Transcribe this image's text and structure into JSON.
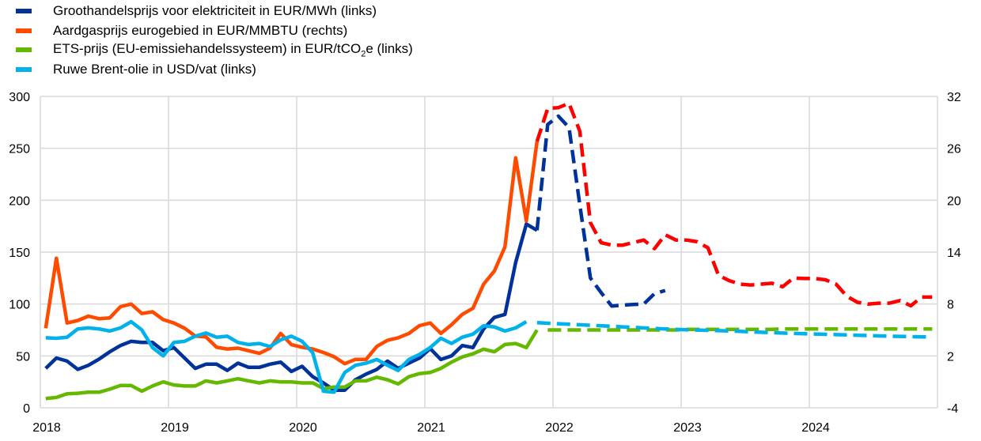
{
  "chart_data": {
    "type": "line",
    "title": "",
    "xlabel": "",
    "ylabel_left": "",
    "ylabel_right": "",
    "x_ticks": [
      "2018",
      "2019",
      "2020",
      "2021",
      "2022",
      "2023",
      "2024"
    ],
    "x_range": [
      "2018-01",
      "2024-12"
    ],
    "ylim_left": [
      0,
      300
    ],
    "yticks_left": [
      0,
      50,
      100,
      150,
      200,
      250,
      300
    ],
    "ylim_right": [
      -4,
      32
    ],
    "yticks_right": [
      -4,
      2,
      8,
      14,
      20,
      26,
      32
    ],
    "grid": true,
    "legend_placement": "top-left",
    "legend": [
      {
        "label_main": "Groothandelsprijs voor elektriciteit in EUR/MWh (links)",
        "color": "#003299"
      },
      {
        "label_main": "Aardgasprijs eurogebied in EUR/MMBTU (rechts)",
        "color": "#FF4B00"
      },
      {
        "label_pre": "ETS-prijs (EU-emissiehandelssysteem) in EUR/tCO",
        "label_sub": "2",
        "label_post": "e (links)",
        "color": "#65B800"
      },
      {
        "label_main": "Ruwe Brent-olie in USD/vat (links)",
        "color": "#00B1EA"
      }
    ],
    "series": [
      {
        "name": "Groothandelsprijs voor elektriciteit in EUR/MWh (links)",
        "axis": "left",
        "color": "#003299",
        "style": "solid",
        "start": "2018-01",
        "values": [
          38,
          48,
          45,
          37,
          41,
          47,
          54,
          60,
          64,
          63,
          63,
          55,
          58,
          48,
          38,
          42,
          42,
          36,
          43,
          39,
          39,
          42,
          44,
          35,
          40,
          30,
          24,
          17,
          17,
          27,
          32.5,
          37,
          45,
          38,
          43,
          48,
          57,
          46.5,
          50,
          60,
          58,
          76,
          87,
          90,
          140,
          177,
          171
        ]
      },
      {
        "name": "Groothandelsprijs voor elektriciteit in EUR/MWh (links)",
        "axis": "left",
        "color": "#003299",
        "style": "dashed",
        "start": "2021-11",
        "values": [
          171,
          273,
          281,
          270,
          196,
          125,
          111,
          98,
          99,
          99.5,
          100,
          110,
          113
        ]
      },
      {
        "name": "Aardgasprijs eurogebied in EUR/MMBTU (rechts)",
        "axis": "right",
        "color": "#FF4B00",
        "style": "solid",
        "start": "2018-01",
        "values": [
          5.2,
          13.3,
          5.8,
          6.1,
          6.6,
          6.3,
          6.4,
          7.7,
          8.0,
          6.9,
          7.1,
          6.2,
          5.8,
          5.2,
          4.3,
          4.2,
          3.0,
          2.8,
          2.9,
          2.6,
          2.3,
          2.9,
          4.6,
          3.3,
          3.0,
          2.8,
          2.4,
          1.9,
          1.1,
          1.6,
          1.6,
          3.1,
          3.8,
          4.1,
          4.6,
          5.5,
          5.8,
          4.6,
          5.6,
          6.8,
          7.5,
          10.3,
          11.8,
          14.6,
          24.9,
          17.6,
          26.8
        ]
      },
      {
        "name": "Aardgasprijs eurogebied in EUR/MMBTU (rechts)",
        "axis": "right",
        "color": "#FF0000",
        "style": "dashed",
        "start": "2021-11",
        "values": [
          26.8,
          30.6,
          30.7,
          31.2,
          28.0,
          17.4,
          15.1,
          14.8,
          14.8,
          15.1,
          15.4,
          14.4,
          16.0,
          15.4,
          15.4,
          15.2,
          14.5,
          11.3,
          10.7,
          10.3,
          10.2,
          10.3,
          10.4,
          10.0,
          11.0,
          10.95,
          10.95,
          10.8,
          10.3,
          8.9,
          8.2,
          8.0,
          8.1,
          8.1,
          8.4,
          7.8,
          8.8,
          8.8
        ]
      },
      {
        "name": "ETS-prijs (EU-emissiehandelssysteem) in EUR/tCO2e (links)",
        "axis": "left",
        "color": "#65B800",
        "style": "solid",
        "start": "2018-01",
        "values": [
          9,
          10,
          13.5,
          14,
          15,
          15,
          18,
          21.5,
          21.5,
          16,
          21,
          25,
          22,
          21,
          21,
          26,
          24,
          26,
          28,
          26,
          24,
          26,
          25,
          25,
          24,
          24,
          18.5,
          20,
          20,
          26,
          26,
          29.5,
          27,
          23,
          30,
          33,
          34,
          38,
          44,
          49,
          52,
          56.5,
          54,
          61,
          62,
          58,
          75
        ]
      },
      {
        "name": "ETS-prijs (EU-emissiehandelssysteem) in EUR/tCO2e (links)",
        "axis": "left",
        "color": "#65B800",
        "style": "dashed",
        "start": "2021-12",
        "values": [
          75,
          75,
          75,
          75,
          75,
          75,
          75,
          75,
          75,
          75,
          75,
          75,
          75,
          75.5,
          75.5,
          75.5,
          75.5,
          75.5,
          75.5,
          75.5,
          75.5,
          75.5,
          76,
          76,
          76,
          76,
          76,
          76,
          76,
          76,
          76,
          76,
          76,
          76,
          76,
          76,
          76
        ]
      },
      {
        "name": "Ruwe Brent-olie in USD/vat (links)",
        "axis": "left",
        "color": "#00B1EA",
        "style": "solid",
        "start": "2018-01",
        "values": [
          67.5,
          67,
          68,
          76,
          77,
          76,
          74,
          77,
          83,
          75,
          58,
          50,
          63,
          64,
          69,
          72,
          68,
          69,
          63,
          61,
          62,
          59,
          65.5,
          69,
          64,
          53,
          16,
          15,
          34,
          41,
          43,
          46.5,
          41,
          36,
          46.5,
          51.5,
          58,
          67,
          62,
          68,
          71,
          79,
          78,
          74,
          77,
          83
        ]
      },
      {
        "name": "Ruwe Brent-olie in USD/vat (links)",
        "axis": "left",
        "color": "#00B1EA",
        "style": "dashed",
        "start": "2021-11",
        "values": [
          82,
          81.5,
          81,
          80.5,
          80,
          79.5,
          79,
          78.5,
          78,
          77.5,
          77,
          76.5,
          76,
          75.5,
          75.2,
          74.9,
          74.6,
          74.3,
          74,
          73.6,
          73.2,
          72.8,
          72.4,
          72,
          71.7,
          71.4,
          71.1,
          70.8,
          70.5,
          70.2,
          69.9,
          69.6,
          69.3,
          69,
          68.8,
          68.6,
          68.4,
          68.3
        ]
      }
    ]
  }
}
